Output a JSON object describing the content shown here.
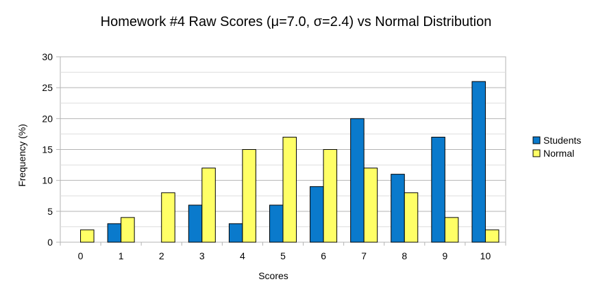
{
  "chart_data": {
    "type": "bar",
    "title": "Homework #4 Raw Scores (μ=7.0, σ=2.4) vs Normal Distribution",
    "xlabel": "Scores",
    "ylabel": "Frequency (%)",
    "ylim": [
      0,
      30
    ],
    "yticks": [
      "0",
      "5",
      "10",
      "15",
      "20",
      "25",
      "30"
    ],
    "categories": [
      "0",
      "1",
      "2",
      "3",
      "4",
      "5",
      "6",
      "7",
      "8",
      "9",
      "10"
    ],
    "grid": true,
    "legend_position": "right",
    "series": [
      {
        "name": "Students",
        "color": "#0a7acc",
        "values": [
          0,
          3,
          0,
          6,
          3,
          6,
          9,
          20,
          11,
          17,
          26
        ]
      },
      {
        "name": "Normal",
        "color": "#ffff66",
        "values": [
          2,
          4,
          8,
          12,
          15,
          17,
          15,
          12,
          8,
          4,
          2
        ]
      }
    ]
  }
}
